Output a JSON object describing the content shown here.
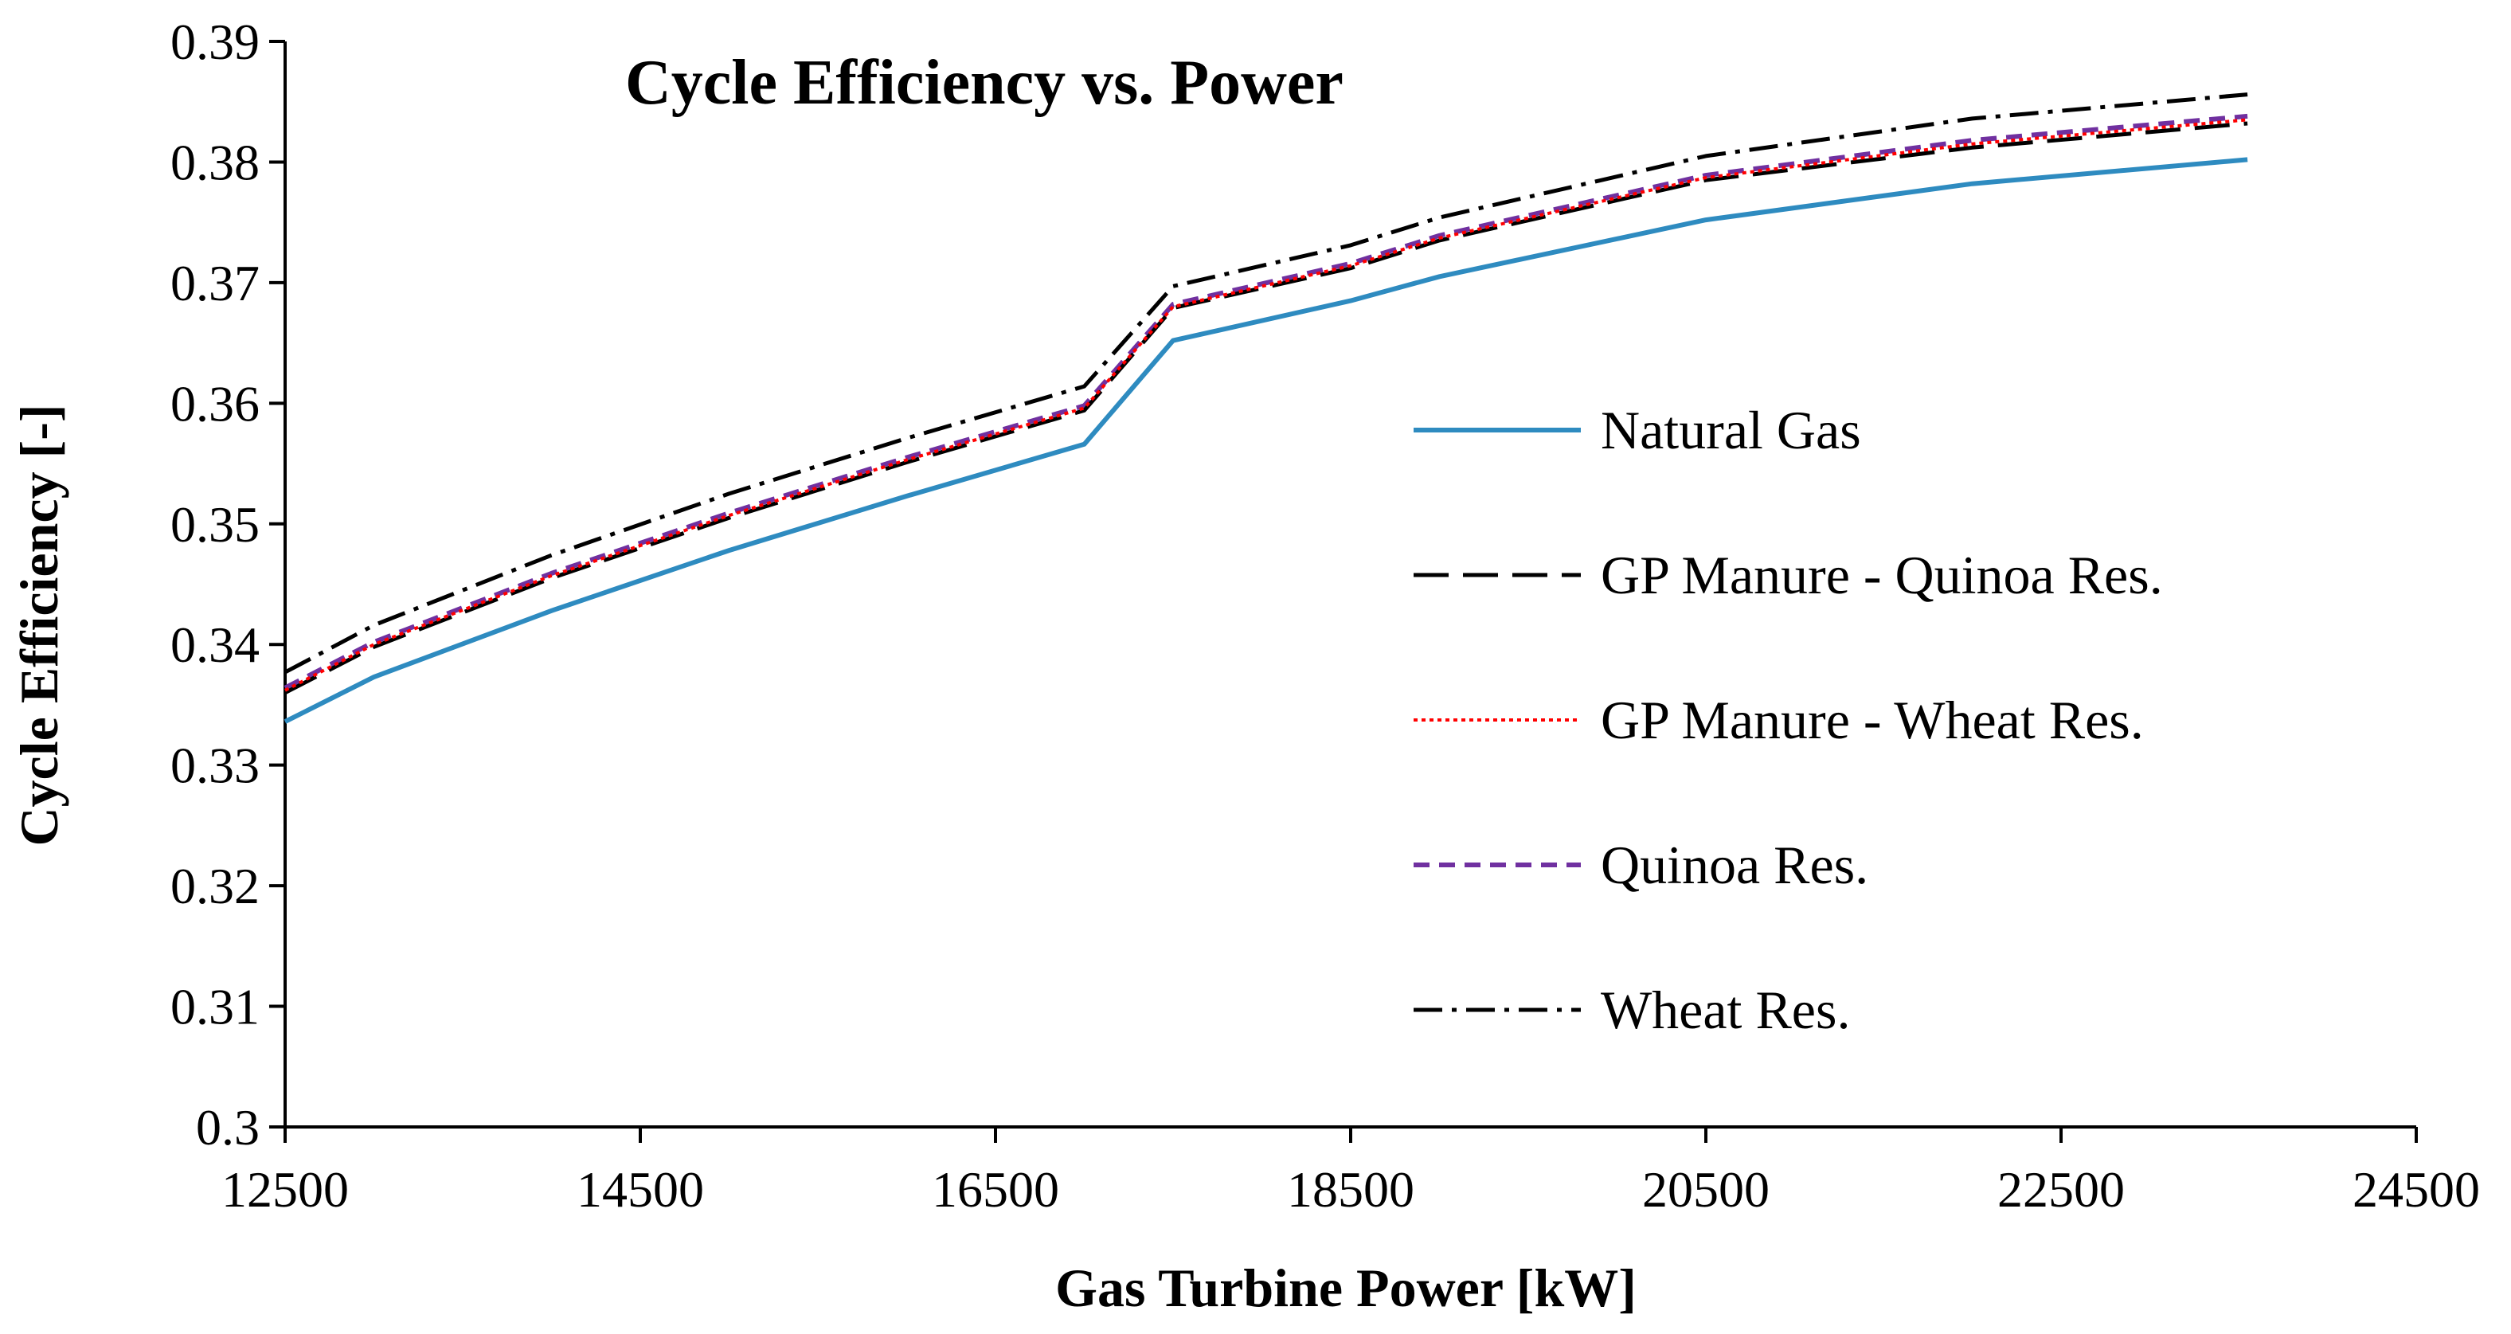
{
  "chart_data": {
    "type": "line",
    "title": "Cycle Efficiency vs. Power",
    "xlabel": "Gas Turbine Power [kW]",
    "ylabel": "Cycle Efficiency [-]",
    "xlim": [
      12500,
      24500
    ],
    "ylim": [
      0.3,
      0.39
    ],
    "xticks": [
      12500,
      14500,
      16500,
      18500,
      20500,
      22500,
      24500
    ],
    "yticks": [
      0.3,
      0.31,
      0.32,
      0.33,
      0.34,
      0.35,
      0.36,
      0.37,
      0.38,
      0.39
    ],
    "xtick_labels": [
      "12500",
      "14500",
      "16500",
      "18500",
      "20500",
      "22500",
      "24500"
    ],
    "ytick_labels": [
      "0.3",
      "0.31",
      "0.32",
      "0.33",
      "0.34",
      "0.35",
      "0.36",
      "0.37",
      "0.38",
      "0.39"
    ],
    "grid": false,
    "legend_position": "right",
    "series": [
      {
        "name": "Natural Gas",
        "color": "#2e8bc0",
        "dash": "solid",
        "x": [
          12500,
          13000,
          14000,
          15000,
          16000,
          17000,
          17500,
          18500,
          19000,
          20500,
          22000,
          23550
        ],
        "y": [
          0.3336,
          0.3373,
          0.3428,
          0.3478,
          0.3523,
          0.3566,
          0.3652,
          0.3685,
          0.3705,
          0.3752,
          0.3782,
          0.3802
        ]
      },
      {
        "name": "GP Manure - Quinoa Res.",
        "color": "#000000",
        "dash": "long-dash",
        "x": [
          12500,
          13000,
          14000,
          15000,
          16000,
          17000,
          17500,
          18500,
          19000,
          20500,
          22000,
          23550
        ],
        "y": [
          0.336,
          0.3398,
          0.3455,
          0.3505,
          0.3551,
          0.3594,
          0.3679,
          0.3712,
          0.3735,
          0.3785,
          0.3812,
          0.3832
        ]
      },
      {
        "name": "GP Manure - Wheat Res.",
        "color": "#ff0000",
        "dash": "dotted",
        "x": [
          12500,
          13000,
          14000,
          15000,
          16000,
          17000,
          17500,
          18500,
          19000,
          20500,
          22000,
          23550
        ],
        "y": [
          0.3362,
          0.34,
          0.3457,
          0.3507,
          0.3553,
          0.3596,
          0.368,
          0.3714,
          0.3737,
          0.3787,
          0.3815,
          0.3835
        ]
      },
      {
        "name": "Quinoa Res.",
        "color": "#7030a0",
        "dash": "short-dash",
        "x": [
          12500,
          13000,
          14000,
          15000,
          16000,
          17000,
          17500,
          18500,
          19000,
          20500,
          22000,
          23550
        ],
        "y": [
          0.3364,
          0.3402,
          0.3459,
          0.3509,
          0.3555,
          0.3598,
          0.3682,
          0.3716,
          0.3739,
          0.3789,
          0.3818,
          0.3838
        ]
      },
      {
        "name": "Wheat Res.",
        "color": "#000000",
        "dash": "dash-dot",
        "x": [
          12500,
          13000,
          14000,
          15000,
          16000,
          17000,
          17500,
          18500,
          19000,
          20500,
          22000,
          23550
        ],
        "y": [
          0.3377,
          0.3416,
          0.3474,
          0.3525,
          0.3571,
          0.3614,
          0.3697,
          0.3731,
          0.3754,
          0.3805,
          0.3836,
          0.3856
        ]
      }
    ]
  }
}
